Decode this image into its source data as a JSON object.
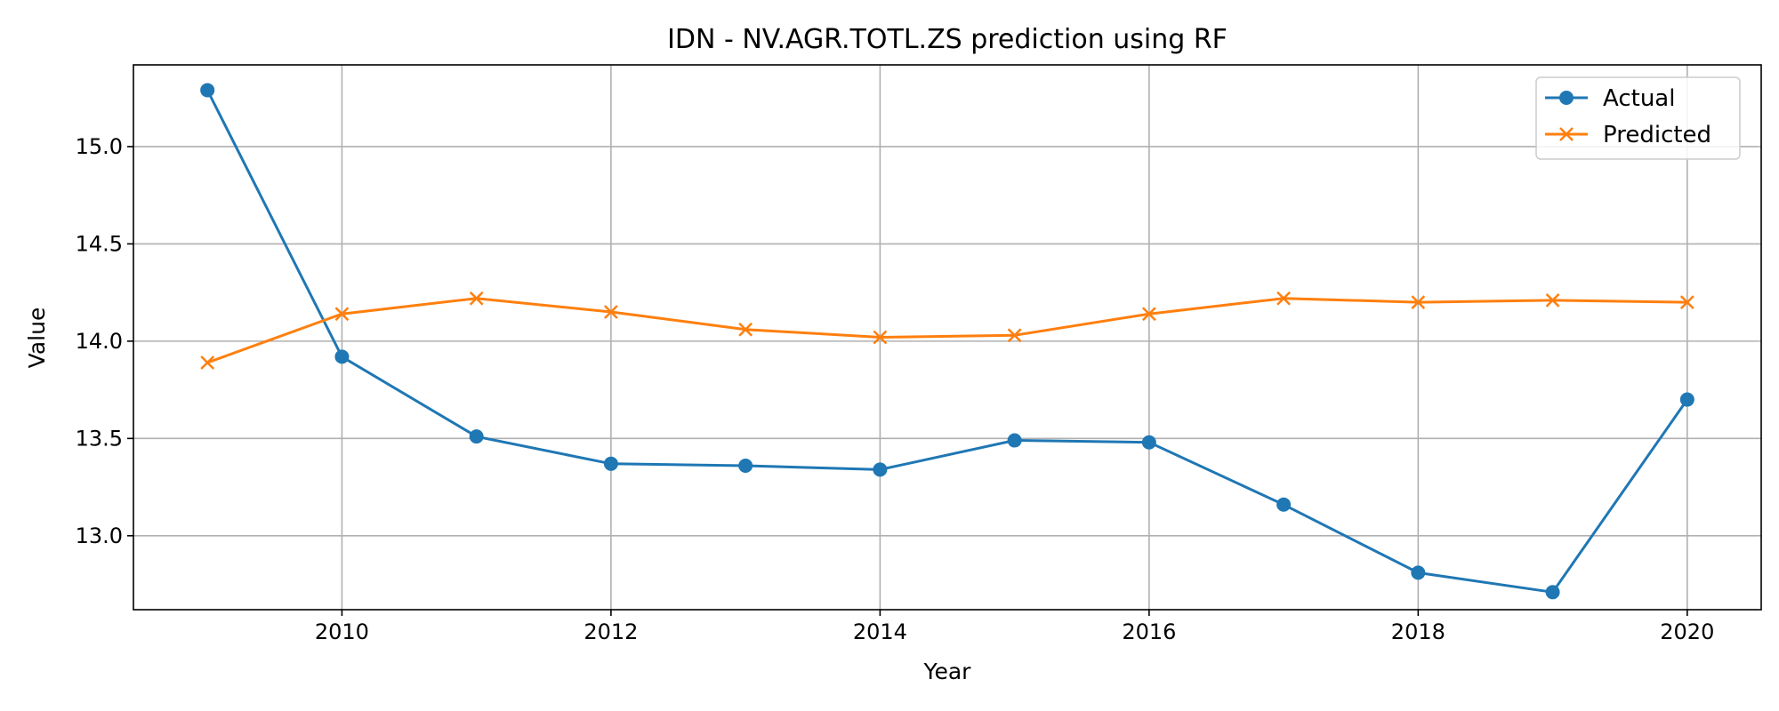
{
  "chart_data": {
    "type": "line",
    "title": "IDN - NV.AGR.TOTL.ZS prediction using RF",
    "xlabel": "Year",
    "ylabel": "Value",
    "x": [
      2009,
      2010,
      2011,
      2012,
      2013,
      2014,
      2015,
      2016,
      2017,
      2018,
      2019,
      2020
    ],
    "series": [
      {
        "name": "Actual",
        "marker": "circle",
        "color": "#1f77b4",
        "values": [
          15.29,
          13.92,
          13.51,
          13.37,
          13.36,
          13.34,
          13.49,
          13.48,
          13.16,
          12.81,
          12.71,
          13.7
        ]
      },
      {
        "name": "Predicted",
        "marker": "x",
        "color": "#ff7f0e",
        "values": [
          13.89,
          14.14,
          14.22,
          14.15,
          14.06,
          14.02,
          14.03,
          14.14,
          14.22,
          14.2,
          14.21,
          14.2
        ]
      }
    ],
    "xlim": [
      2008.45,
      2020.55
    ],
    "ylim": [
      12.62,
      15.42
    ],
    "xticks": [
      "2010",
      "2012",
      "2014",
      "2016",
      "2018",
      "2020"
    ],
    "yticks": [
      "13.0",
      "13.5",
      "14.0",
      "14.5",
      "15.0"
    ],
    "grid": true,
    "legend": "top-right"
  }
}
